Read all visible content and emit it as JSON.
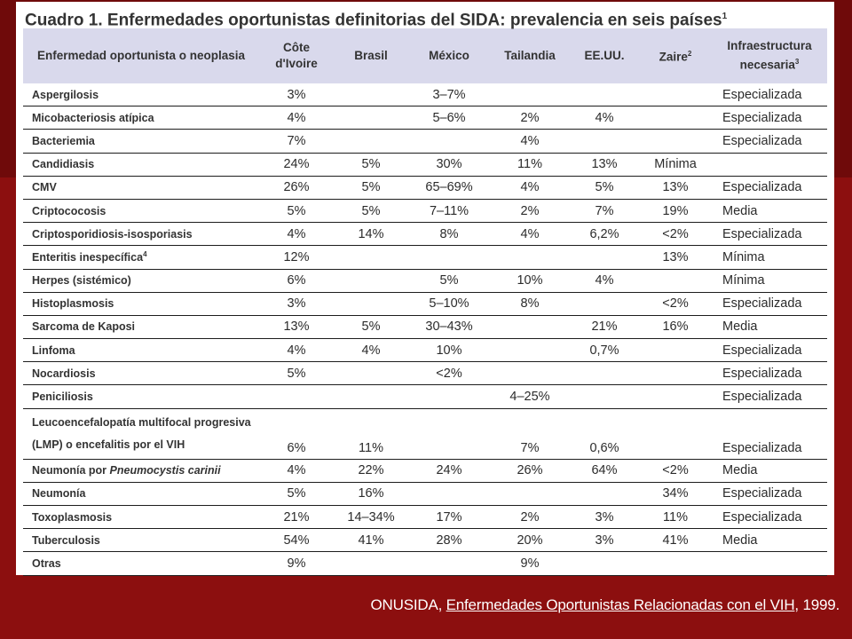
{
  "title": "Cuadro 1. Enfermedades oportunistas definitorias del SIDA: prevalencia en seis países",
  "title_sup": "1",
  "headers": {
    "disease": "Enfermedad oportunista o neoplasia",
    "cote": "Côte d'Ivoire",
    "brasil": "Brasil",
    "mexico": "México",
    "tailandia": "Tailandia",
    "eeuu": "EE.UU.",
    "zaire": "Zaire",
    "zaire_sup": "2",
    "infra": "Infraestructura necesaria",
    "infra_sup": "3"
  },
  "rows": [
    {
      "disease": "Aspergilosis",
      "cote": "3%",
      "brasil": "",
      "mexico": "3–7%",
      "tailandia": "",
      "eeuu": "",
      "zaire": "",
      "infra": "Especializada"
    },
    {
      "disease": "Micobacteriosis atípica",
      "cote": "4%",
      "brasil": "",
      "mexico": "5–6%",
      "tailandia": "2%",
      "eeuu": "4%",
      "zaire": "",
      "infra": "Especializada"
    },
    {
      "disease": "Bacteriemia",
      "cote": "7%",
      "brasil": "",
      "mexico": "",
      "tailandia": "4%",
      "eeuu": "",
      "zaire": "",
      "infra": "Especializada"
    },
    {
      "disease": "Candidiasis",
      "cote": "24%",
      "brasil": "5%",
      "mexico": "30%",
      "tailandia": "11%",
      "eeuu": "13%",
      "zaire": "Mínima",
      "infra": ""
    },
    {
      "disease": "CMV",
      "cote": "26%",
      "brasil": "5%",
      "mexico": "65–69%",
      "tailandia": "4%",
      "eeuu": "5%",
      "zaire": "13%",
      "infra": "Especializada"
    },
    {
      "disease": "Criptococosis",
      "cote": "5%",
      "brasil": "5%",
      "mexico": "7–11%",
      "tailandia": "2%",
      "eeuu": "7%",
      "zaire": "19%",
      "infra": "Media"
    },
    {
      "disease": "Criptosporidiosis-isosporiasis",
      "cote": "4%",
      "brasil": "14%",
      "mexico": "8%",
      "tailandia": "4%",
      "eeuu": "6,2%",
      "zaire": "<2%",
      "infra": "Especializada"
    },
    {
      "disease": "Enteritis inespecífica",
      "disease_sup": "4",
      "cote": "12%",
      "brasil": "",
      "mexico": "",
      "tailandia": "",
      "eeuu": "",
      "zaire": "13%",
      "infra": "Mínima"
    },
    {
      "disease": "Herpes (sistémico)",
      "cote": "6%",
      "brasil": "",
      "mexico": "5%",
      "tailandia": "10%",
      "eeuu": "4%",
      "zaire": "",
      "infra": "Mínima"
    },
    {
      "disease": "Histoplasmosis",
      "cote": "3%",
      "brasil": "",
      "mexico": "5–10%",
      "tailandia": "8%",
      "eeuu": "",
      "zaire": "<2%",
      "infra": "Especializada"
    },
    {
      "disease": "Sarcoma de Kaposi",
      "cote": "13%",
      "brasil": "5%",
      "mexico": "30–43%",
      "tailandia": "",
      "eeuu": "21%",
      "zaire": "16%",
      "infra": "Media"
    },
    {
      "disease": "Linfoma",
      "cote": "4%",
      "brasil": "4%",
      "mexico": "10%",
      "tailandia": "",
      "eeuu": "0,7%",
      "zaire": "",
      "infra": "Especializada"
    },
    {
      "disease": "Nocardiosis",
      "cote": "5%",
      "brasil": "",
      "mexico": "<2%",
      "tailandia": "",
      "eeuu": "",
      "zaire": "",
      "infra": "Especializada"
    },
    {
      "disease": "Peniciliosis",
      "cote": "",
      "brasil": "",
      "mexico": "",
      "tailandia": "4–25%",
      "eeuu": "",
      "zaire": "",
      "infra": "Especializada"
    },
    {
      "disease": "Leucoencefalopatía multifocal progresiva (LMP) o encefalitis por el VIH",
      "cote": "6%",
      "brasil": "11%",
      "mexico": "",
      "tailandia": "7%",
      "eeuu": "0,6%",
      "zaire": "",
      "infra": "Especializada",
      "tall": true
    },
    {
      "disease": "Neumonía por ",
      "disease_italic": "Pneumocystis carinii",
      "cote": "4%",
      "brasil": "22%",
      "mexico": "24%",
      "tailandia": "26%",
      "eeuu": "64%",
      "zaire": "<2%",
      "infra": "Media"
    },
    {
      "disease": "Neumonía",
      "cote": "5%",
      "brasil": "16%",
      "mexico": "",
      "tailandia": "",
      "eeuu": "",
      "zaire": "34%",
      "infra": "Especializada"
    },
    {
      "disease": "Toxoplasmosis",
      "cote": "21%",
      "brasil": "14–34%",
      "mexico": "17%",
      "tailandia": "2%",
      "eeuu": "3%",
      "zaire": "11%",
      "infra": "Especializada"
    },
    {
      "disease": "Tuberculosis",
      "cote": "54%",
      "brasil": "41%",
      "mexico": "28%",
      "tailandia": "20%",
      "eeuu": "3%",
      "zaire": "41%",
      "infra": "Media"
    },
    {
      "disease": "Otras",
      "cote": "9%",
      "brasil": "",
      "mexico": "",
      "tailandia": "9%",
      "eeuu": "",
      "zaire": "",
      "infra": ""
    }
  ],
  "caption": {
    "org": "ONUSIDA, ",
    "work": "Enfermedades Oportunistas Relacionadas con el VIH",
    "year": ", 1999."
  },
  "colors": {
    "background": "#8c0f0f",
    "header_band": "#d9d9ec",
    "card": "#ffffff"
  }
}
